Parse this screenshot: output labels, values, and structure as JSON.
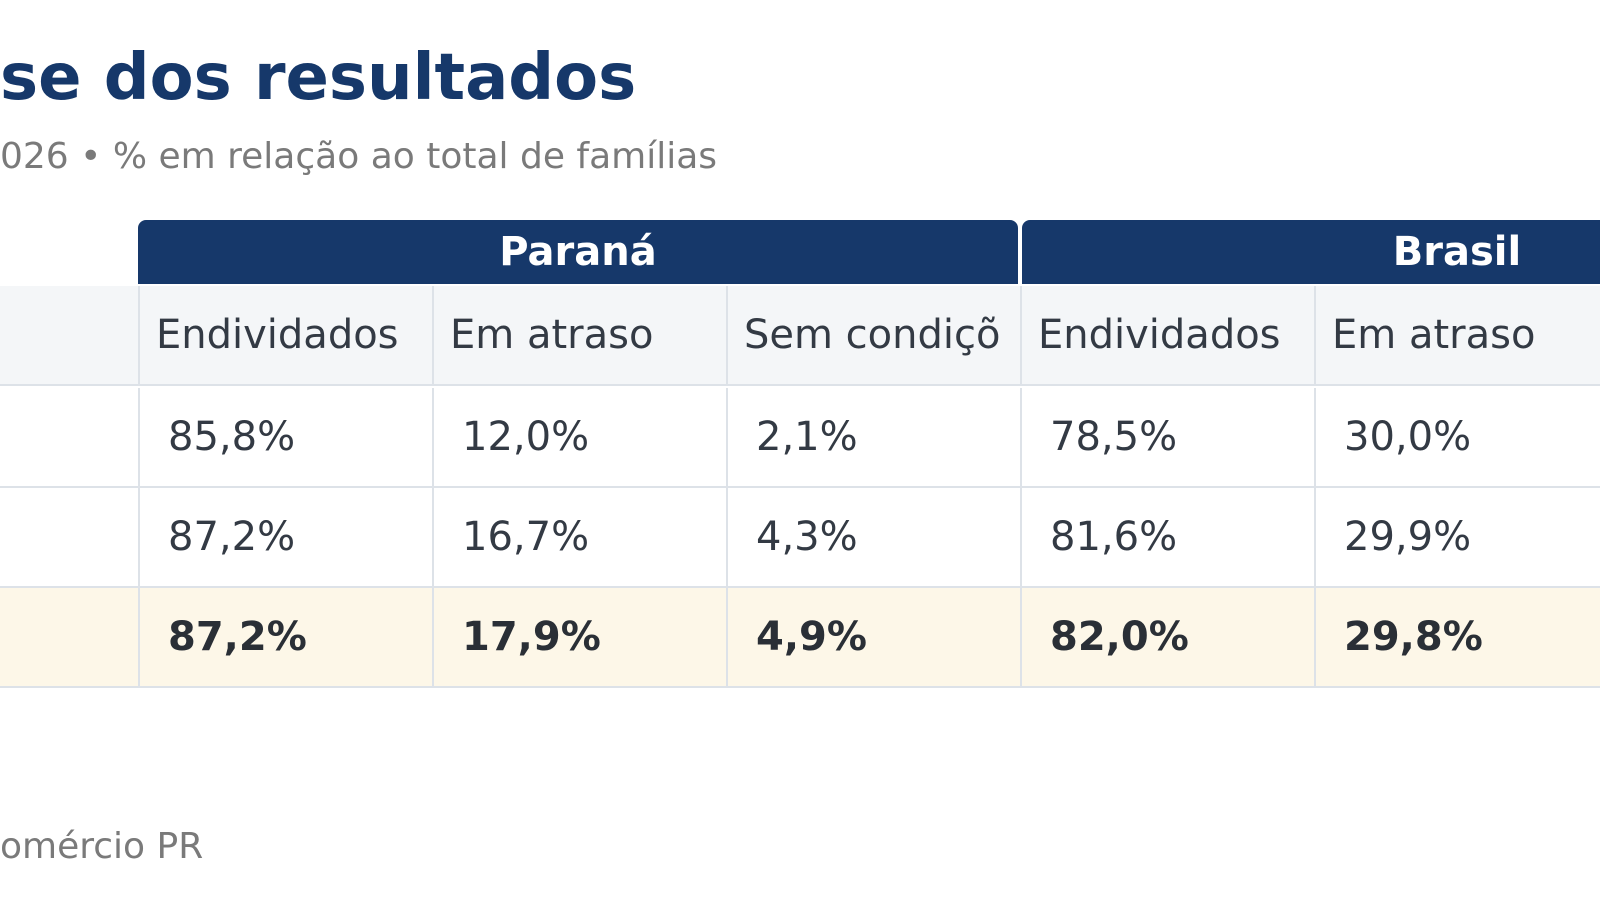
{
  "title": "se dos resultados",
  "subtitle": "026 • % em relação ao total de famílias",
  "table": {
    "groups": [
      {
        "label": "Paraná"
      },
      {
        "label": "Brasil"
      }
    ],
    "columns": [
      "Endividados",
      "Em atraso",
      "Sem condiçõ",
      "Endividados",
      "Em atraso"
    ],
    "rows": [
      {
        "values": [
          "85,8%",
          "12,0%",
          "2,1%",
          "78,5%",
          "30,0%"
        ],
        "highlight": false
      },
      {
        "values": [
          "87,2%",
          "16,7%",
          "4,3%",
          "81,6%",
          "29,9%"
        ],
        "highlight": false
      },
      {
        "values": [
          "87,2%",
          "17,9%",
          "4,9%",
          "82,0%",
          "29,8%"
        ],
        "highlight": true
      }
    ]
  },
  "source": "omércio PR",
  "colors": {
    "header_bg": "#16386a",
    "title": "#16386a",
    "highlight_row": "#fdf7e8",
    "subheader_bg": "#f4f6f8",
    "grid": "#dde2e8"
  }
}
